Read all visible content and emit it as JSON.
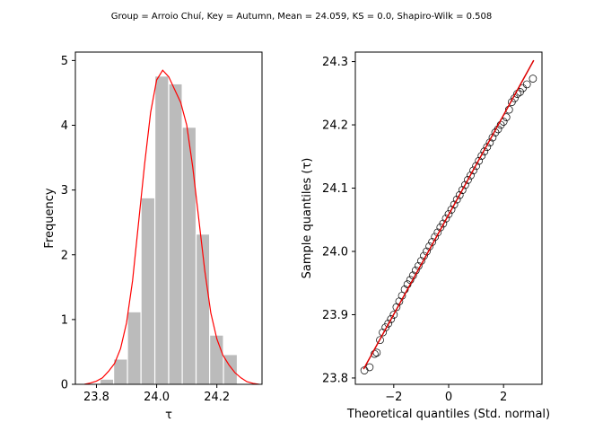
{
  "figure": {
    "suptitle": "Group = Arroio Chuí, Key = Autumn, Mean = 24.059, KS = 0.0, Shapiro-Wilk = 0.508"
  },
  "colors": {
    "bars": "#bbbbbb",
    "kde": "#ff0000",
    "fit_line": "#dd0000",
    "points_edge": "#000000"
  },
  "chart_data": [
    {
      "type": "bar",
      "subtype": "histogram-with-kde",
      "title": "",
      "xlabel": "τ",
      "ylabel": "Frequency",
      "xlim": [
        23.73,
        24.35
      ],
      "ylim": [
        0,
        5.13
      ],
      "xticks": [
        23.8,
        24.0,
        24.2
      ],
      "xtick_labels": [
        "23.8",
        "24.0",
        "24.2"
      ],
      "yticks": [
        0,
        1,
        2,
        3,
        4,
        5
      ],
      "ytick_labels": [
        "0",
        "1",
        "2",
        "3",
        "4",
        "5"
      ],
      "bins": [
        [
          23.812,
          23.857,
          0.08
        ],
        [
          23.857,
          23.903,
          0.39
        ],
        [
          23.903,
          23.948,
          1.12
        ],
        [
          23.948,
          23.994,
          2.88
        ],
        [
          23.994,
          24.04,
          4.76
        ],
        [
          24.04,
          24.085,
          4.64
        ],
        [
          24.085,
          24.131,
          3.97
        ],
        [
          24.131,
          24.176,
          2.32
        ],
        [
          24.176,
          24.222,
          0.76
        ],
        [
          24.222,
          24.268,
          0.46
        ]
      ],
      "kde": {
        "x": [
          23.76,
          23.78,
          23.8,
          23.82,
          23.84,
          23.86,
          23.88,
          23.9,
          23.92,
          23.94,
          23.96,
          23.98,
          24.0,
          24.02,
          24.04,
          24.06,
          24.08,
          24.1,
          24.12,
          24.14,
          24.16,
          24.18,
          24.2,
          24.22,
          24.24,
          24.26,
          24.28,
          24.3,
          24.32,
          24.34
        ],
        "y": [
          0.0,
          0.02,
          0.05,
          0.1,
          0.2,
          0.32,
          0.55,
          0.95,
          1.6,
          2.5,
          3.4,
          4.2,
          4.7,
          4.85,
          4.75,
          4.55,
          4.35,
          4.0,
          3.35,
          2.55,
          1.75,
          1.1,
          0.7,
          0.45,
          0.3,
          0.18,
          0.1,
          0.04,
          0.015,
          0.0
        ]
      }
    },
    {
      "type": "scatter",
      "subtype": "qq-plot",
      "title": "",
      "xlabel": "Theoretical quantiles (Std. normal)",
      "ylabel": "Sample quantiles (τ)",
      "xlim": [
        -3.4,
        3.4
      ],
      "ylim": [
        23.79,
        24.315
      ],
      "xticks": [
        -2,
        0,
        2
      ],
      "xtick_labels": [
        "−2",
        "0",
        "2"
      ],
      "yticks": [
        23.8,
        23.9,
        24.0,
        24.1,
        24.2,
        24.3
      ],
      "ytick_labels": [
        "23.8",
        "23.9",
        "24.0",
        "24.1",
        "24.2",
        "24.3"
      ],
      "fit_line": {
        "x": [
          -3.1,
          3.1
        ],
        "y": [
          23.814,
          24.302
        ]
      },
      "points": {
        "x": [
          -3.07,
          -2.88,
          -2.7,
          -2.62,
          -2.5,
          -2.4,
          -2.3,
          -2.2,
          -2.1,
          -2.0,
          -1.9,
          -1.8,
          -1.7,
          -1.6,
          -1.5,
          -1.4,
          -1.3,
          -1.2,
          -1.1,
          -1.0,
          -0.9,
          -0.8,
          -0.7,
          -0.6,
          -0.5,
          -0.4,
          -0.3,
          -0.2,
          -0.1,
          0.0,
          0.1,
          0.2,
          0.3,
          0.4,
          0.5,
          0.6,
          0.7,
          0.8,
          0.9,
          1.0,
          1.1,
          1.2,
          1.3,
          1.4,
          1.5,
          1.6,
          1.7,
          1.8,
          1.9,
          2.0,
          2.1,
          2.2,
          2.3,
          2.4,
          2.5,
          2.6,
          2.7,
          2.85,
          3.07
        ],
        "y": [
          23.812,
          23.817,
          23.838,
          23.84,
          23.86,
          23.872,
          23.88,
          23.886,
          23.893,
          23.9,
          23.912,
          23.921,
          23.93,
          23.94,
          23.948,
          23.955,
          23.962,
          23.97,
          23.977,
          23.985,
          23.993,
          24.0,
          24.008,
          24.015,
          24.023,
          24.03,
          24.038,
          24.044,
          24.052,
          24.059,
          24.066,
          24.074,
          24.082,
          24.089,
          24.097,
          24.105,
          24.113,
          24.12,
          24.128,
          24.135,
          24.143,
          24.151,
          24.158,
          24.165,
          24.172,
          24.18,
          24.188,
          24.193,
          24.2,
          24.205,
          24.212,
          24.224,
          24.236,
          24.242,
          24.249,
          24.252,
          24.258,
          24.264,
          24.273
        ]
      }
    }
  ]
}
